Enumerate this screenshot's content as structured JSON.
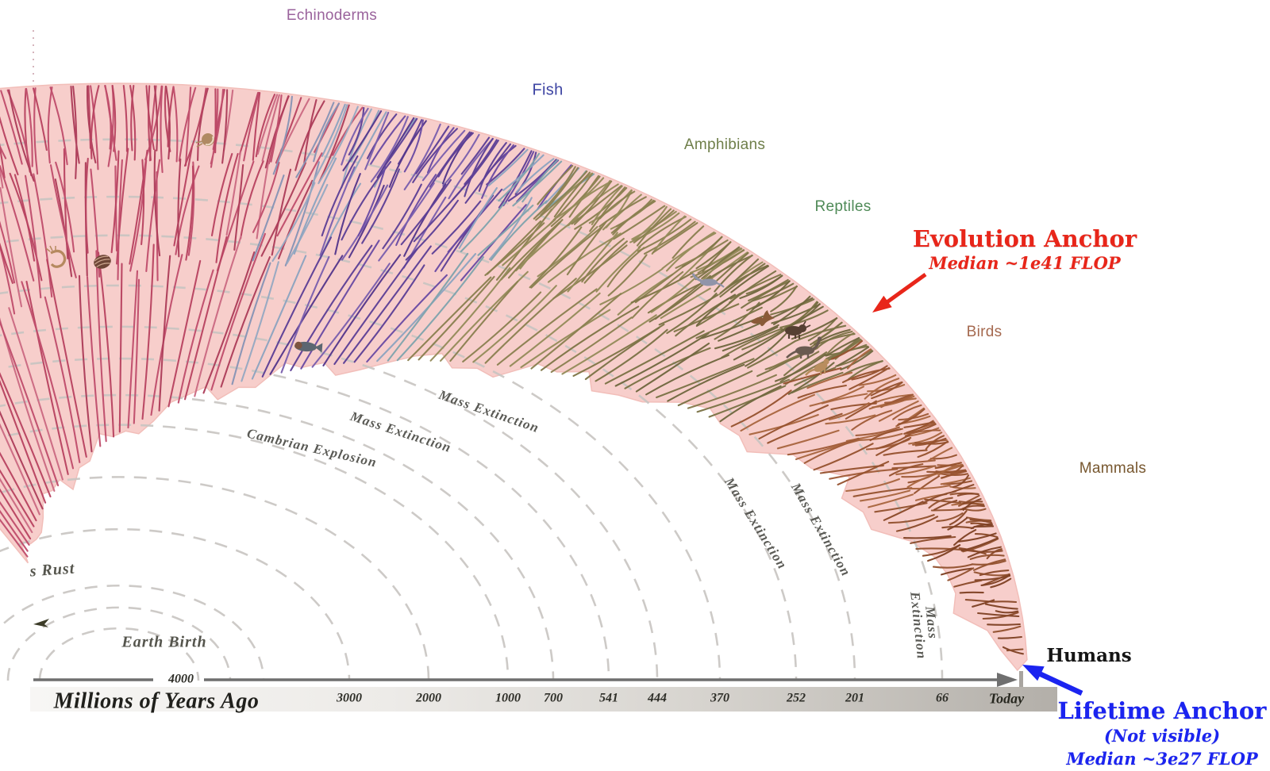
{
  "taxa": {
    "echinoderms": {
      "label": "Echinoderms",
      "color": "#9a639c"
    },
    "fish": {
      "label": "Fish",
      "color": "#3e45a3"
    },
    "amphibians": {
      "label": "Amphibians",
      "color": "#6f7f4a"
    },
    "reptiles": {
      "label": "Reptiles",
      "color": "#4f8a57"
    },
    "birds": {
      "label": "Birds",
      "color": "#a5694f"
    },
    "mammals": {
      "label": "Mammals",
      "color": "#77572f"
    },
    "humans": {
      "label": "Humans",
      "color": "#151515"
    }
  },
  "annotations": {
    "evolution_anchor": {
      "title": "Evolution Anchor",
      "median": "Median ~1e41 FLOP",
      "color": "#e8261a"
    },
    "lifetime_anchor": {
      "title": "Lifetime Anchor",
      "note": "(Not visible)",
      "median": "Median ~3e27 FLOP",
      "color": "#1b24f0"
    }
  },
  "events": {
    "mass_extinctions": [
      "Mass Extinction",
      "Mass Extinction",
      "Mass Extinction",
      "Mass Extinction",
      "Mass Extinction"
    ],
    "cambrian_explosion": "Cambrian Explosion",
    "earth_birth": "Earth Birth",
    "rust_partial": "s Rust"
  },
  "timeline": {
    "axis_title": "Millions of Years Ago",
    "ticks": [
      "4000",
      "3000",
      "2000",
      "1000",
      "700",
      "541",
      "444",
      "370",
      "252",
      "201",
      "66"
    ],
    "today": "Today"
  },
  "illustrations": [
    "nautilus",
    "shrimp",
    "trilobite-shell",
    "coelacanth-fish",
    "plesiosaur",
    "pterosaur",
    "triceratops",
    "sauropod",
    "tyrannosaurus"
  ],
  "colors": {
    "tree_fill": "#f7cecb",
    "arc_dash": "#c8c5c2",
    "axis_line": "#6f6f6f"
  }
}
